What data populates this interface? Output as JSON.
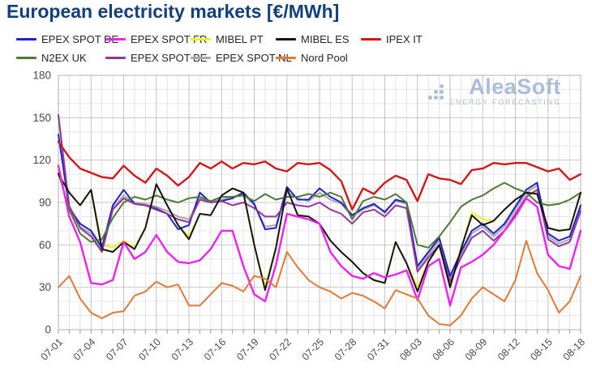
{
  "title": "European electricity markets [€/MWh]",
  "watermark": {
    "name": "AleaSoft",
    "subtitle": "ENERGY FORECASTING",
    "color": "#a6bbd8"
  },
  "chart_data": {
    "type": "line",
    "title": "European electricity markets [€/MWh]",
    "xlabel": "",
    "ylabel": "",
    "ylim": [
      0,
      180
    ],
    "ytick_step": 30,
    "minor_grid_step": 10,
    "grid": true,
    "legend_position": "top",
    "axis_label_color": "#4a4a4a",
    "categories": [
      "07-01",
      "07-02",
      "07-03",
      "07-04",
      "07-05",
      "07-06",
      "07-07",
      "07-08",
      "07-09",
      "07-10",
      "07-11",
      "07-12",
      "07-13",
      "07-14",
      "07-15",
      "07-16",
      "07-17",
      "07-18",
      "07-19",
      "07-20",
      "07-21",
      "07-22",
      "07-23",
      "07-24",
      "07-25",
      "07-26",
      "07-27",
      "07-28",
      "07-29",
      "07-30",
      "07-31",
      "08-01",
      "08-02",
      "08-03",
      "08-04",
      "08-05",
      "08-06",
      "08-07",
      "08-08",
      "08-09",
      "08-10",
      "08-11",
      "08-12",
      "08-13",
      "08-14",
      "08-15",
      "08-16",
      "08-17",
      "08-18"
    ],
    "xtick_labels": [
      "07-01",
      "07-04",
      "07-07",
      "07-10",
      "07-13",
      "07-16",
      "07-19",
      "07-22",
      "07-25",
      "07-28",
      "07-31",
      "08-03",
      "08-06",
      "08-09",
      "08-12",
      "08-15",
      "08-18"
    ],
    "ytick_labels": [
      "0",
      "30",
      "60",
      "90",
      "120",
      "150",
      "180"
    ],
    "series": [
      {
        "name": "EPEX SPOT DE",
        "color": "#2121cc",
        "width": 2,
        "values": [
          138,
          86,
          75,
          70,
          58,
          88,
          99,
          89,
          88,
          85,
          82,
          71,
          74,
          97,
          90,
          91,
          93,
          97,
          89,
          71,
          72,
          101,
          92,
          92,
          100,
          94,
          90,
          81,
          86,
          89,
          83,
          92,
          90,
          45,
          55,
          65,
          38,
          55,
          70,
          75,
          68,
          75,
          87,
          99,
          104,
          68,
          63,
          66,
          88
        ]
      },
      {
        "name": "EPEX SPOT FR",
        "color": "#ee22ee",
        "width": 2.4,
        "values": [
          116,
          80,
          62,
          33,
          32,
          35,
          62,
          50,
          55,
          67,
          55,
          48,
          47,
          49,
          57,
          70,
          70,
          45,
          25,
          20,
          46,
          82,
          80,
          78,
          75,
          55,
          45,
          38,
          36,
          40,
          37,
          39,
          42,
          21,
          45,
          50,
          17,
          44,
          48,
          53,
          60,
          70,
          80,
          93,
          87,
          53,
          45,
          43,
          70
        ]
      },
      {
        "name": "MIBEL PT",
        "color": "#f2ef1d",
        "width": 2,
        "values": [
          110,
          97,
          88,
          99,
          60,
          58,
          63,
          58,
          72,
          103,
          88,
          74,
          66,
          82,
          81,
          95,
          100,
          97,
          60,
          30,
          58,
          100,
          81,
          80,
          75,
          63,
          55,
          48,
          40,
          35,
          33,
          62,
          47,
          30,
          48,
          60,
          30,
          57,
          83,
          78,
          77,
          85,
          92,
          97,
          97,
          72,
          70,
          71,
          97
        ]
      },
      {
        "name": "MIBEL ES",
        "color": "#141414",
        "width": 2,
        "values": [
          110,
          97,
          88,
          99,
          57,
          55,
          62,
          57,
          72,
          103,
          88,
          74,
          64,
          82,
          81,
          95,
          100,
          97,
          60,
          28,
          58,
          100,
          81,
          80,
          75,
          63,
          55,
          48,
          40,
          35,
          33,
          62,
          47,
          27,
          48,
          60,
          30,
          57,
          81,
          74,
          77,
          85,
          92,
          97,
          96,
          72,
          70,
          71,
          97
        ]
      },
      {
        "name": "IPEX IT",
        "color": "#d01818",
        "width": 2.4,
        "values": [
          133,
          122,
          114,
          111,
          108,
          107,
          116,
          109,
          104,
          114,
          109,
          102,
          108,
          118,
          114,
          119,
          114,
          118,
          117,
          119,
          114,
          112,
          118,
          117,
          118,
          113,
          105,
          85,
          100,
          96,
          104,
          109,
          106,
          91,
          110,
          107,
          106,
          103,
          113,
          114,
          118,
          117,
          118,
          118,
          115,
          112,
          114,
          106,
          110
        ]
      },
      {
        "name": "N2EX UK",
        "color": "#4d7a35",
        "width": 2,
        "values": [
          111,
          85,
          68,
          62,
          64,
          79,
          90,
          94,
          92,
          95,
          92,
          90,
          93,
          94,
          91,
          94,
          94,
          95,
          91,
          96,
          92,
          94,
          94,
          96,
          94,
          97,
          94,
          78,
          91,
          94,
          92,
          96,
          90,
          60,
          58,
          66,
          76,
          87,
          92,
          95,
          100,
          104,
          100,
          97,
          90,
          88,
          89,
          92,
          97
        ]
      },
      {
        "name": "EPEX SPOT BE",
        "color": "#93379b",
        "width": 2,
        "values": [
          152,
          87,
          72,
          66,
          55,
          85,
          93,
          89,
          88,
          86,
          82,
          78,
          76,
          92,
          90,
          91,
          88,
          90,
          86,
          80,
          80,
          90,
          88,
          87,
          90,
          85,
          82,
          75,
          83,
          85,
          80,
          88,
          86,
          41,
          51,
          60,
          34,
          51,
          65,
          70,
          63,
          70,
          82,
          94,
          99,
          64,
          59,
          62,
          84
        ]
      },
      {
        "name": "EPEX SPOT NL",
        "color": "#a9a9ab",
        "width": 2,
        "values": [
          150,
          88,
          73,
          68,
          56,
          86,
          95,
          90,
          89,
          87,
          84,
          80,
          78,
          93,
          91,
          92,
          94,
          96,
          88,
          73,
          74,
          97,
          93,
          91,
          97,
          92,
          89,
          80,
          85,
          88,
          84,
          91,
          89,
          43,
          53,
          63,
          36,
          53,
          68,
          73,
          66,
          73,
          85,
          97,
          102,
          66,
          61,
          64,
          86
        ]
      },
      {
        "name": "Nord Pool",
        "color": "#e07a35",
        "width": 2,
        "values": [
          30,
          38,
          22,
          12,
          8,
          12,
          13,
          24,
          27,
          34,
          30,
          32,
          17,
          17,
          25,
          33,
          31,
          27,
          38,
          36,
          30,
          55,
          44,
          35,
          30,
          27,
          22,
          26,
          24,
          20,
          15,
          28,
          25,
          22,
          10,
          4,
          3,
          10,
          22,
          30,
          25,
          20,
          35,
          63,
          40,
          28,
          12,
          20,
          38
        ]
      }
    ],
    "draw_order": [
      "MIBEL PT",
      "EPEX SPOT NL",
      "EPEX SPOT DE",
      "EPEX SPOT BE",
      "N2EX UK",
      "MIBEL ES",
      "EPEX SPOT FR",
      "Nord Pool",
      "IPEX IT"
    ]
  }
}
